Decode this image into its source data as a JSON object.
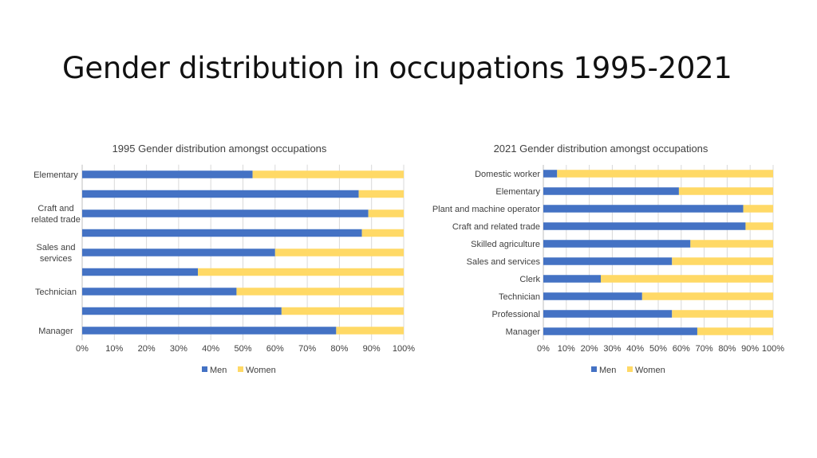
{
  "slide": {
    "title": "Gender distribution in occupations 1995-2021"
  },
  "colors": {
    "men": "#4472C4",
    "women": "#FFD966",
    "grid": "#D9D9D9",
    "axis": "#BFBFBF",
    "text": "#404040"
  },
  "chart_data": [
    {
      "type": "bar",
      "stacked": "100%",
      "orientation": "horizontal",
      "title": "1995 Gender distribution amongst occupations",
      "categories": [
        "Manager",
        "",
        "Technician",
        "",
        "Sales and services",
        "",
        "Craft and related trade",
        "",
        "Elementary"
      ],
      "series": [
        {
          "name": "Men",
          "values": [
            79,
            62,
            48,
            36,
            60,
            87,
            89,
            86,
            53
          ]
        },
        {
          "name": "Women",
          "values": [
            21,
            38,
            52,
            64,
            40,
            13,
            11,
            14,
            47
          ]
        }
      ],
      "xlim": [
        0,
        100
      ],
      "x_tick_labels": [
        "0%",
        "10%",
        "20%",
        "30%",
        "40%",
        "50%",
        "60%",
        "70%",
        "80%",
        "90%",
        "100%"
      ],
      "legend": "bottom",
      "grid": true
    },
    {
      "type": "bar",
      "stacked": "100%",
      "orientation": "horizontal",
      "title": "2021 Gender distribution amongst occupations",
      "categories": [
        "Manager",
        "Professional",
        "Technician",
        "Clerk",
        "Sales and services",
        "Skilled agriculture",
        "Craft and related trade",
        "Plant and machine operator",
        "Elementary",
        "Domestic worker"
      ],
      "series": [
        {
          "name": "Men",
          "values": [
            67,
            56,
            43,
            25,
            56,
            64,
            88,
            87,
            59,
            6
          ]
        },
        {
          "name": "Women",
          "values": [
            33,
            44,
            57,
            75,
            44,
            36,
            12,
            13,
            41,
            94
          ]
        }
      ],
      "xlim": [
        0,
        100
      ],
      "x_tick_labels": [
        "0%",
        "10%",
        "20%",
        "30%",
        "40%",
        "50%",
        "60%",
        "70%",
        "80%",
        "90%",
        "100%"
      ],
      "legend": "bottom",
      "grid": true
    }
  ]
}
